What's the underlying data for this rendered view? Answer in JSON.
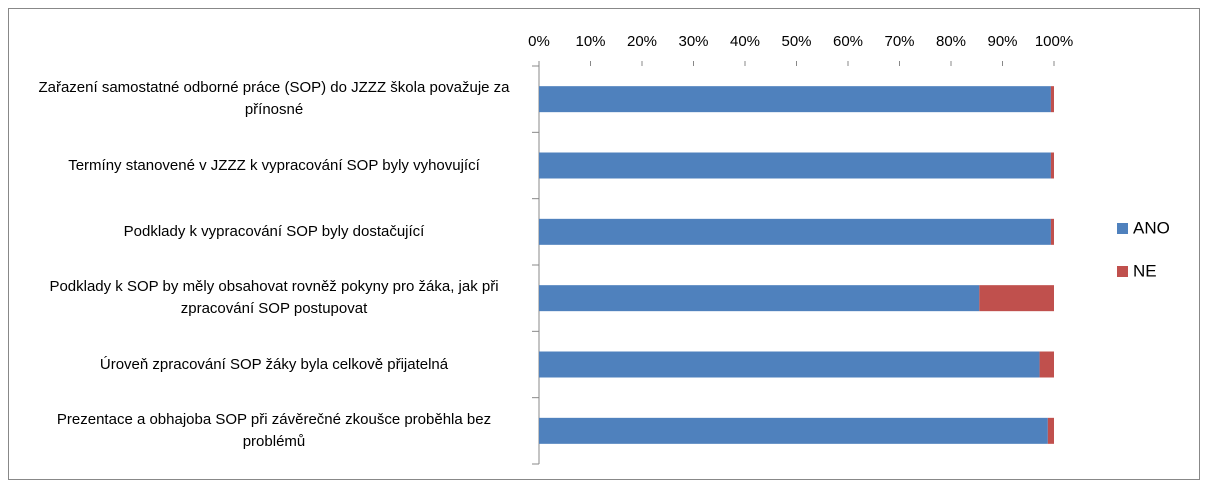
{
  "chart_data": {
    "type": "stacked-barh",
    "categories": [
      "Zařazení samostatné odborné práce (SOP) do JZZZ  škola považuje za přínosné",
      "Termíny stanovené v JZZZ k vypracování SOP byly vyhovující",
      "Podklady k vypracování SOP byly dostačující",
      "Podklady k SOP by měly obsahovat rovněž pokyny pro žáka, jak při zpracování SOP postupovat",
      "Úroveň zpracování SOP žáky byla celkově přijatelná",
      "Prezentace a obhajoba SOP při závěrečné zkoušce proběhla bez problémů"
    ],
    "series": [
      {
        "name": "ANO",
        "color": "#4f81bd",
        "values": [
          99.4,
          99.4,
          99.4,
          85.5,
          97.2,
          98.8
        ]
      },
      {
        "name": "NE",
        "color": "#c0504d",
        "values": [
          0.6,
          0.6,
          0.6,
          14.5,
          2.8,
          1.2
        ]
      }
    ],
    "xlim": [
      0,
      100
    ],
    "xticks": [
      {
        "value": 0,
        "label": "0%"
      },
      {
        "value": 10,
        "label": "10%"
      },
      {
        "value": 20,
        "label": "20%"
      },
      {
        "value": 30,
        "label": "30%"
      },
      {
        "value": 40,
        "label": "40%"
      },
      {
        "value": 50,
        "label": "50%"
      },
      {
        "value": 60,
        "label": "60%"
      },
      {
        "value": 70,
        "label": "70%"
      },
      {
        "value": 80,
        "label": "80%"
      },
      {
        "value": 90,
        "label": "90%"
      },
      {
        "value": 100,
        "label": "100%"
      }
    ],
    "legend": "right"
  }
}
